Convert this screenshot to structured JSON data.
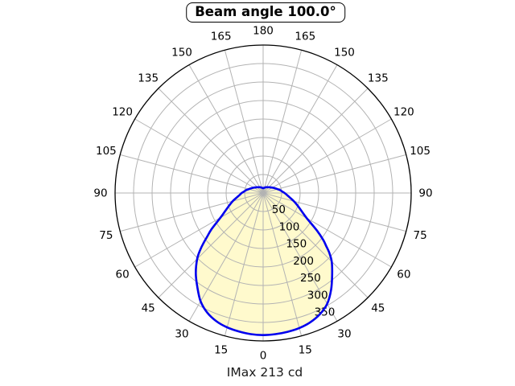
{
  "title": "Beam angle 100.0°",
  "caption": "IMax 213 cd",
  "chart_data": {
    "type": "line",
    "subtype": "polar",
    "title": "Beam angle 100.0°",
    "caption": "IMax 213 cd",
    "imax_cd": 213,
    "beam_angle_deg": 100.0,
    "angle_unit": "deg",
    "angle_tick_labels": [
      "0",
      "15",
      "30",
      "45",
      "60",
      "75",
      "90",
      "105",
      "120",
      "135",
      "150",
      "165",
      "180"
    ],
    "angle_ticks_deg": [
      0,
      15,
      30,
      45,
      60,
      75,
      90,
      105,
      120,
      135,
      150,
      165,
      180
    ],
    "radial_ticks": [
      50,
      100,
      150,
      200,
      250,
      300,
      350
    ],
    "radial_tick_labels": [
      "50",
      "100",
      "150",
      "200",
      "250",
      "300",
      "350"
    ],
    "radial_max": 400,
    "grid": "on",
    "zero_angle_position": "bottom",
    "colors": {
      "curve": "#0000ee",
      "fill": "#fffacd",
      "grid": "#b3b3b3",
      "outer_ring": "#000000",
      "text": "#000000"
    },
    "series": [
      {
        "name": "luminous-intensity-curve",
        "points_deg_value": [
          [
            -180,
            13
          ],
          [
            -165,
            15
          ],
          [
            -150,
            18
          ],
          [
            -135,
            22
          ],
          [
            -120,
            29
          ],
          [
            -110,
            36
          ],
          [
            -100,
            46
          ],
          [
            -95,
            51
          ],
          [
            -90,
            58
          ],
          [
            -85,
            64
          ],
          [
            -80,
            73
          ],
          [
            -75,
            85
          ],
          [
            -70,
            97
          ],
          [
            -65,
            112
          ],
          [
            -60,
            133
          ],
          [
            -55,
            170
          ],
          [
            -52,
            192
          ],
          [
            -50,
            210
          ],
          [
            -48,
            228
          ],
          [
            -45,
            252
          ],
          [
            -40,
            283
          ],
          [
            -35,
            310
          ],
          [
            -30,
            338
          ],
          [
            -25,
            357
          ],
          [
            -20,
            369
          ],
          [
            -15,
            376
          ],
          [
            -10,
            380
          ],
          [
            -5,
            383
          ],
          [
            0,
            384
          ],
          [
            5,
            383
          ],
          [
            10,
            381
          ],
          [
            15,
            378
          ],
          [
            20,
            372
          ],
          [
            25,
            362
          ],
          [
            30,
            346
          ],
          [
            35,
            320
          ],
          [
            40,
            290
          ],
          [
            45,
            262
          ],
          [
            48,
            240
          ],
          [
            50,
            222
          ],
          [
            52,
            206
          ],
          [
            55,
            178
          ],
          [
            60,
            136
          ],
          [
            65,
            114
          ],
          [
            70,
            99
          ],
          [
            75,
            86
          ],
          [
            80,
            74
          ],
          [
            85,
            65
          ],
          [
            90,
            58
          ],
          [
            95,
            51
          ],
          [
            100,
            46
          ],
          [
            110,
            36
          ],
          [
            120,
            29
          ],
          [
            135,
            22
          ],
          [
            150,
            18
          ],
          [
            165,
            15
          ],
          [
            180,
            13
          ]
        ]
      }
    ]
  }
}
